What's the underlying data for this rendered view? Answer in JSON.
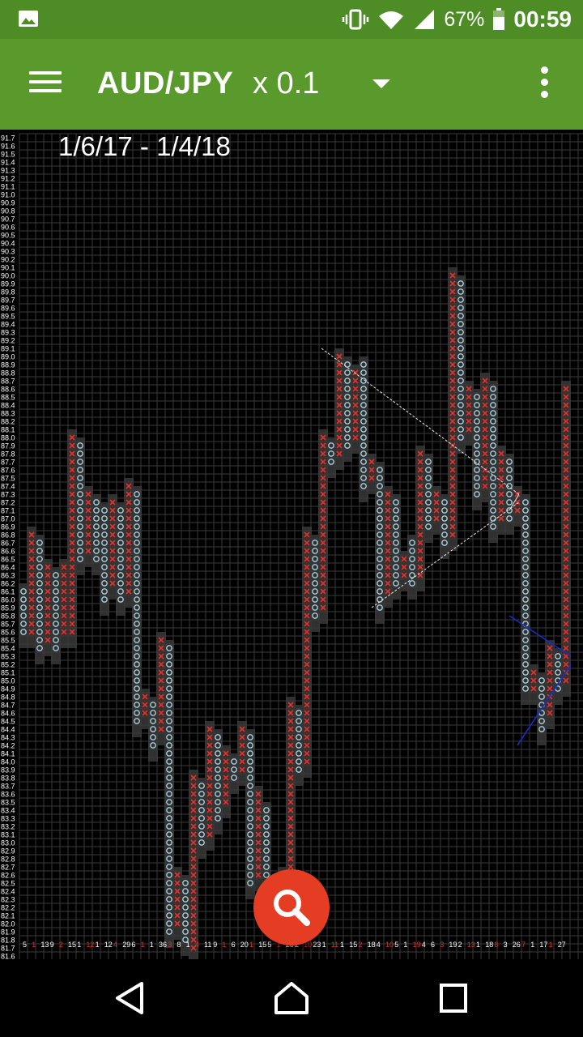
{
  "status_bar": {
    "battery": "67%",
    "time": "00:59"
  },
  "app_bar": {
    "symbol": "AUD/JPY",
    "scale": "x 0.1"
  },
  "chart": {
    "date_range": "1/6/17 - 1/4/18"
  },
  "chart_data": {
    "type": "point-and-figure",
    "y_axis": {
      "min": 81.6,
      "max": 91.7,
      "step": 0.1
    },
    "columns": [
      {
        "kind": "O",
        "from": 85.6,
        "to": 86.1
      },
      {
        "kind": "X",
        "from": 85.6,
        "to": 86.8
      },
      {
        "kind": "O",
        "from": 85.4,
        "to": 86.7
      },
      {
        "kind": "X",
        "from": 85.5,
        "to": 86.4
      },
      {
        "kind": "O",
        "from": 85.4,
        "to": 86.3
      },
      {
        "kind": "X",
        "from": 85.6,
        "to": 86.4
      },
      {
        "kind": "X",
        "from": 85.6,
        "to": 88.0
      },
      {
        "kind": "O",
        "from": 86.5,
        "to": 87.9
      },
      {
        "kind": "X",
        "from": 86.6,
        "to": 87.3
      },
      {
        "kind": "O",
        "from": 86.5,
        "to": 87.2
      },
      {
        "kind": "O",
        "from": 86.0,
        "to": 87.1
      },
      {
        "kind": "X",
        "from": 86.2,
        "to": 87.2
      },
      {
        "kind": "O",
        "from": 86.0,
        "to": 87.1
      },
      {
        "kind": "X",
        "from": 86.1,
        "to": 87.4
      },
      {
        "kind": "O",
        "from": 84.5,
        "to": 87.3
      },
      {
        "kind": "X",
        "from": 84.6,
        "to": 84.8
      },
      {
        "kind": "O",
        "from": 84.2,
        "to": 84.7
      },
      {
        "kind": "X",
        "from": 84.4,
        "to": 85.5
      },
      {
        "kind": "O",
        "from": 81.9,
        "to": 85.4
      },
      {
        "kind": "X",
        "from": 82.0,
        "to": 82.6
      },
      {
        "kind": "O",
        "from": 81.8,
        "to": 82.5
      },
      {
        "kind": "X",
        "from": 81.7,
        "to": 83.8
      },
      {
        "kind": "O",
        "from": 83.0,
        "to": 83.7
      },
      {
        "kind": "X",
        "from": 83.1,
        "to": 84.4
      },
      {
        "kind": "O",
        "from": 83.3,
        "to": 84.3
      },
      {
        "kind": "X",
        "from": 83.5,
        "to": 84.1
      },
      {
        "kind": "O",
        "from": 83.8,
        "to": 84.0
      },
      {
        "kind": "X",
        "from": 83.9,
        "to": 84.4
      },
      {
        "kind": "O",
        "from": 82.5,
        "to": 84.3
      },
      {
        "kind": "X",
        "from": 82.6,
        "to": 83.6
      },
      {
        "kind": "O",
        "from": 82.2,
        "to": 83.4
      },
      {
        "kind": "X",
        "from": 82.3,
        "to": 82.5
      },
      {
        "kind": "O",
        "from": 82.0,
        "to": 82.6
      },
      {
        "kind": "X",
        "from": 82.1,
        "to": 84.7
      },
      {
        "kind": "O",
        "from": 83.9,
        "to": 84.6
      },
      {
        "kind": "X",
        "from": 84.0,
        "to": 86.8
      },
      {
        "kind": "O",
        "from": 85.8,
        "to": 86.7
      },
      {
        "kind": "X",
        "from": 85.9,
        "to": 88.0
      },
      {
        "kind": "O",
        "from": 87.7,
        "to": 87.9
      },
      {
        "kind": "X",
        "from": 87.8,
        "to": 89.0
      },
      {
        "kind": "O",
        "from": 87.9,
        "to": 88.9
      },
      {
        "kind": "X",
        "from": 88.0,
        "to": 88.8
      },
      {
        "kind": "O",
        "from": 87.4,
        "to": 88.9
      },
      {
        "kind": "X",
        "from": 87.5,
        "to": 87.7
      },
      {
        "kind": "O",
        "from": 85.9,
        "to": 87.6
      },
      {
        "kind": "X",
        "from": 86.1,
        "to": 87.3
      },
      {
        "kind": "O",
        "from": 86.2,
        "to": 87.2
      },
      {
        "kind": "X",
        "from": 86.3,
        "to": 86.5
      },
      {
        "kind": "O",
        "from": 86.2,
        "to": 86.7
      },
      {
        "kind": "X",
        "from": 86.3,
        "to": 87.8
      },
      {
        "kind": "O",
        "from": 86.9,
        "to": 87.7
      },
      {
        "kind": "X",
        "from": 87.0,
        "to": 87.3
      },
      {
        "kind": "O",
        "from": 86.7,
        "to": 87.2
      },
      {
        "kind": "X",
        "from": 86.8,
        "to": 90.0
      },
      {
        "kind": "O",
        "from": 88.0,
        "to": 89.9
      },
      {
        "kind": "X",
        "from": 88.1,
        "to": 88.6
      },
      {
        "kind": "O",
        "from": 87.3,
        "to": 88.5
      },
      {
        "kind": "X",
        "from": 87.4,
        "to": 88.7
      },
      {
        "kind": "O",
        "from": 86.9,
        "to": 88.6
      },
      {
        "kind": "X",
        "from": 87.0,
        "to": 87.8
      },
      {
        "kind": "O",
        "from": 87.0,
        "to": 87.7
      },
      {
        "kind": "X",
        "from": 87.1,
        "to": 87.3
      },
      {
        "kind": "O",
        "from": 84.9,
        "to": 87.2
      },
      {
        "kind": "X",
        "from": 84.9,
        "to": 85.1
      },
      {
        "kind": "O",
        "from": 84.4,
        "to": 85.0
      },
      {
        "kind": "X",
        "from": 84.6,
        "to": 85.4
      },
      {
        "kind": "O",
        "from": 84.9,
        "to": 85.3
      },
      {
        "kind": "X",
        "from": 85.0,
        "to": 88.6
      }
    ],
    "x_labels": [
      "5",
      "1",
      "13",
      "9",
      "2",
      "15",
      "1",
      "12",
      "1",
      "12",
      "4",
      "29",
      "6",
      "1",
      "1",
      "36",
      "3",
      "8",
      "1",
      "4",
      "11",
      "9",
      "1",
      "6",
      "20",
      "1",
      "15",
      "5",
      "1",
      "28",
      "2",
      "10",
      "23",
      "1",
      "11",
      "1",
      "15",
      "2",
      "18",
      "4",
      "10",
      "5",
      "1",
      "19",
      "4",
      "6",
      "3",
      "19",
      "2",
      "13",
      "1",
      "18",
      "8",
      "3",
      "26",
      "7",
      "1",
      "17",
      "1",
      "27"
    ],
    "colors": {
      "x_mark": "#e8302a",
      "o_mark": "#a8d0dc",
      "grid": "#3a3a3a",
      "trend_line": "#e8e8e8",
      "recent_line": "#1a2cc8"
    }
  }
}
